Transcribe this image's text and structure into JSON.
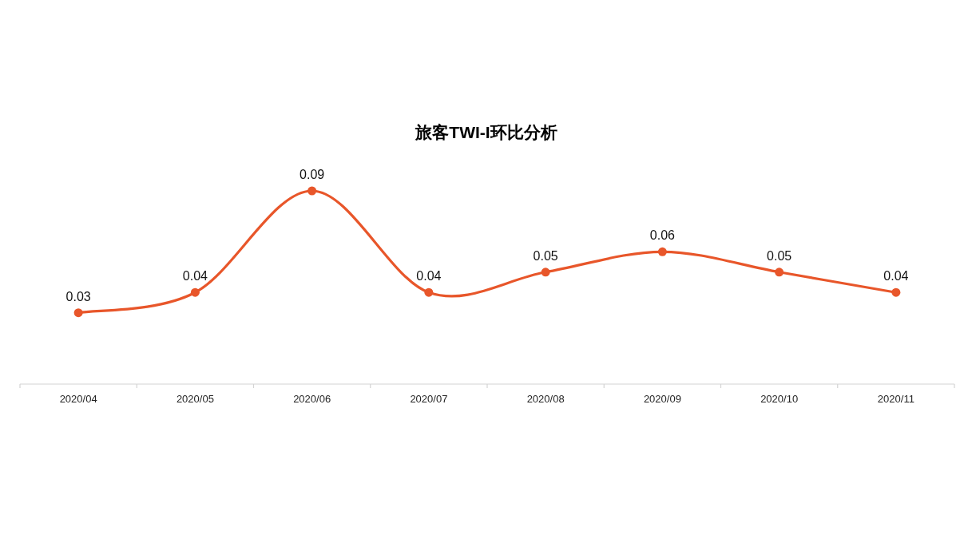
{
  "chart_data": {
    "type": "line",
    "title": "旅客TWI-I环比分析",
    "categories": [
      "2020/04",
      "2020/05",
      "2020/06",
      "2020/07",
      "2020/08",
      "2020/09",
      "2020/10",
      "2020/11"
    ],
    "series": [
      {
        "color": "#e8562a",
        "values": [
          0.03,
          0.04,
          0.09,
          0.04,
          0.05,
          0.06,
          0.05,
          0.04
        ]
      }
    ],
    "data_labels": true,
    "marker": "circle"
  }
}
